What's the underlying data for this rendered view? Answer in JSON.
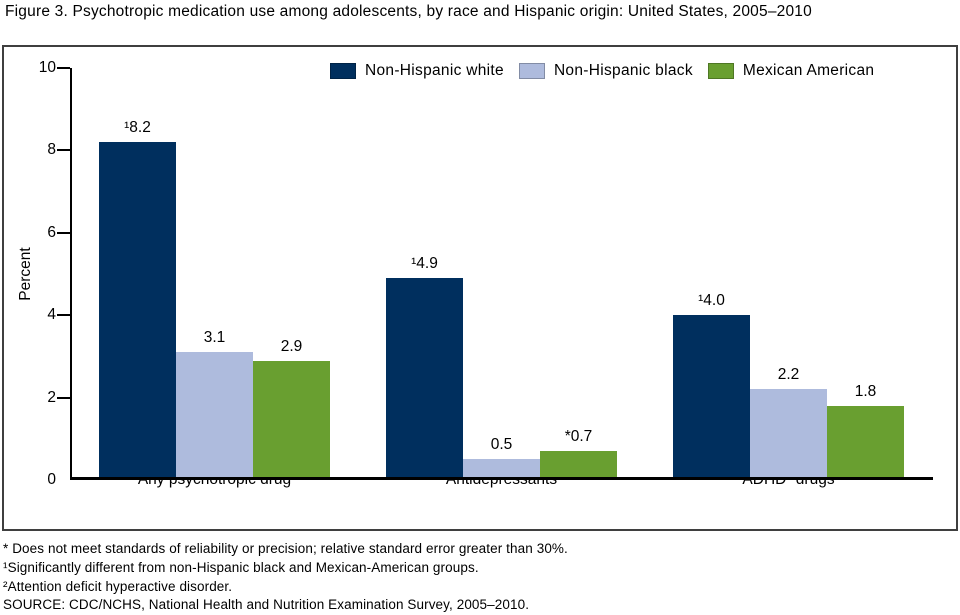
{
  "title": "Figure 3. Psychotropic medication use among adolescents, by race and Hispanic origin: United States, 2005–2010",
  "chart_data": {
    "type": "bar",
    "title": "Psychotropic medication use among adolescents, by race and Hispanic origin: United States, 2005–2010",
    "categories": [
      "Any psychotropic drug",
      "Antidepressants",
      "ADHD² drugs"
    ],
    "series": [
      {
        "name": "Non-Hispanic white",
        "color": "#002f5e",
        "values": [
          8.2,
          4.9,
          4.0
        ],
        "bar_labels": [
          "¹8.2",
          "¹4.9",
          "¹4.0"
        ]
      },
      {
        "name": "Non-Hispanic black",
        "color": "#aebbdd",
        "values": [
          3.1,
          0.5,
          2.2
        ],
        "bar_labels": [
          "3.1",
          "0.5",
          "2.2"
        ]
      },
      {
        "name": "Mexican American",
        "color": "#699f30",
        "values": [
          2.9,
          0.7,
          1.8
        ],
        "bar_labels": [
          "2.9",
          "*0.7",
          "1.8"
        ]
      }
    ],
    "xlabel": "",
    "ylabel": "Percent",
    "ylim": [
      0,
      10
    ],
    "yticks": [
      0,
      2,
      4,
      6,
      8,
      10
    ],
    "legend_position": "top-inside",
    "grid": false
  },
  "footnotes": [
    "* Does not meet standards of reliability or precision; relative standard error greater than 30%.",
    "¹Significantly different from non-Hispanic black and Mexican-American groups.",
    "²Attention deficit hyperactive disorder.",
    "SOURCE: CDC/NCHS, National Health and Nutrition Examination Survey, 2005–2010."
  ]
}
